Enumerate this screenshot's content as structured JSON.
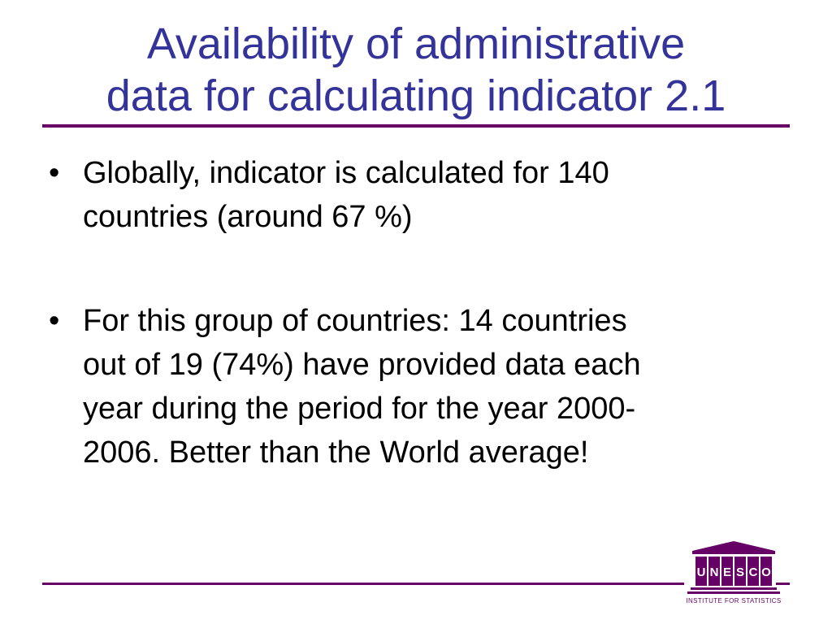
{
  "slide": {
    "title_lines": [
      "Availability of administrative",
      "data for calculating indicator 2.1"
    ],
    "bullets": [
      {
        "lines": [
          "Globally, indicator is calculated for 140",
          "countries (around 67 %)"
        ]
      },
      {
        "lines": [
          "For this group of countries: 14 countries",
          "out of 19 (74%) have provided data each",
          "year during the period for the year 2000-",
          "2006. Better than the World average!"
        ]
      }
    ],
    "bullet_glyph": "•"
  },
  "logo": {
    "name": "UNESCO",
    "subtitle": "INSTITUTE FOR STATISTICS",
    "icon": "unesco-temple-logo"
  },
  "colors": {
    "title": "#333399",
    "rule": "#660066",
    "body_text": "#000000",
    "background": "#ffffff"
  }
}
